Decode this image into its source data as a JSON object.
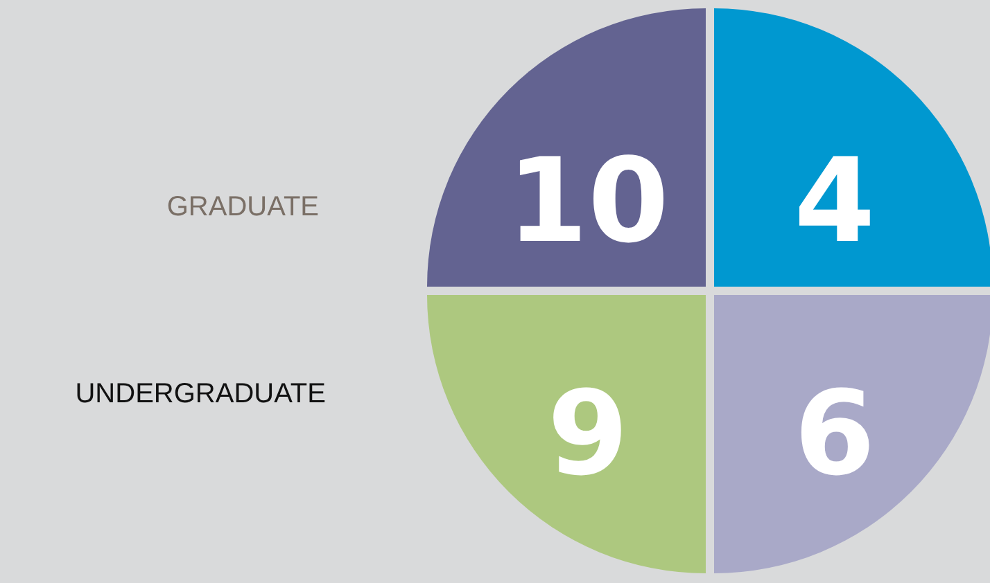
{
  "chart_data": {
    "type": "other",
    "y_categories": [
      "GRADUATE",
      "UNDERGRADUATE"
    ],
    "values": [
      10,
      4,
      9,
      6
    ],
    "data_labels": true,
    "colors": [
      "#636391",
      "#0098d0",
      "#adc87f",
      "#a9a9c8"
    ]
  }
}
